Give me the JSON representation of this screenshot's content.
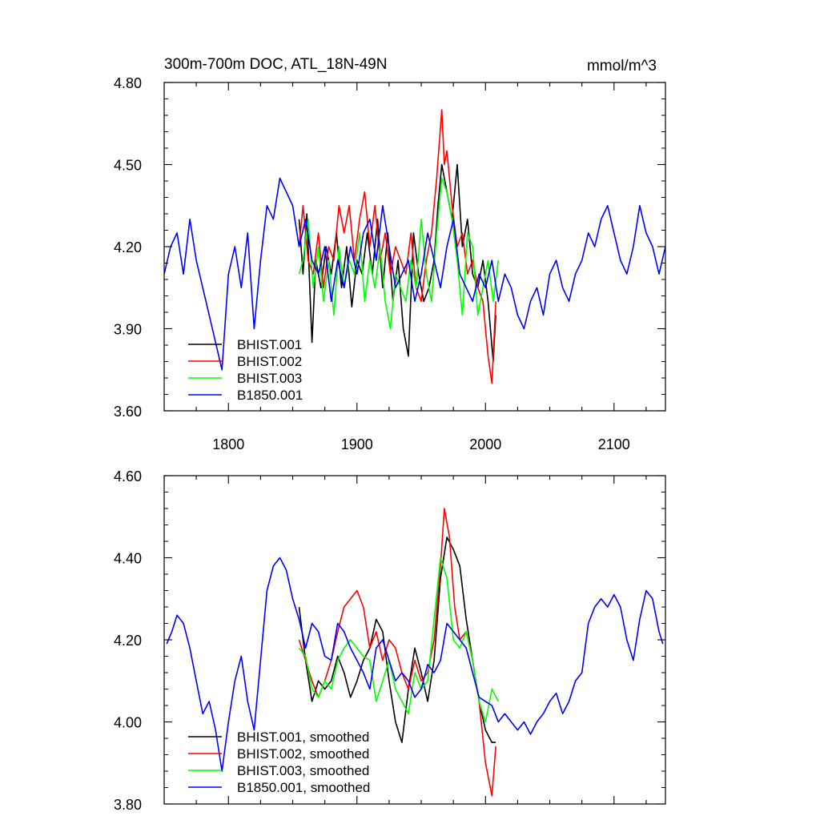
{
  "chart_data": [
    {
      "type": "line",
      "title": "300m-700m DOC, ATL_18N-49N",
      "units": "mmol/m^3",
      "xlim": [
        1750,
        2140
      ],
      "ylim": [
        3.6,
        4.8
      ],
      "xticks": [
        {
          "value": 1800,
          "label": "1800"
        },
        {
          "value": 1900,
          "label": "1900"
        },
        {
          "value": 2000,
          "label": "2000"
        },
        {
          "value": 2100,
          "label": "2100"
        }
      ],
      "yticks": [
        {
          "value": 3.6,
          "label": "3.60"
        },
        {
          "value": 3.9,
          "label": "3.90"
        },
        {
          "value": 4.2,
          "label": "4.20"
        },
        {
          "value": 4.5,
          "label": "4.50"
        },
        {
          "value": 4.8,
          "label": "4.80"
        }
      ],
      "legend_position": "bottom-left",
      "series": [
        {
          "name": "BHIST.001",
          "color": "#000000",
          "x": [
            1855,
            1858,
            1861,
            1862,
            1865,
            1868,
            1872,
            1876,
            1880,
            1884,
            1888,
            1892,
            1896,
            1900,
            1904,
            1908,
            1912,
            1916,
            1920,
            1924,
            1928,
            1932,
            1936,
            1940,
            1944,
            1948,
            1952,
            1956,
            1960,
            1963,
            1966,
            1970,
            1974,
            1978,
            1982,
            1986,
            1990,
            1994,
            1998,
            2002,
            2006,
            2008
          ],
          "y": [
            4.3,
            4.1,
            4.32,
            4.2,
            3.85,
            4.15,
            4.05,
            4.2,
            4.1,
            4.25,
            4.05,
            4.2,
            3.98,
            4.15,
            4.1,
            4.25,
            4.1,
            4.3,
            4.05,
            4.25,
            4.0,
            4.15,
            3.9,
            3.8,
            4.25,
            4.1,
            4.0,
            4.05,
            4.15,
            4.35,
            4.5,
            4.4,
            4.3,
            4.5,
            4.2,
            4.3,
            4.1,
            4.05,
            4.15,
            4.0,
            3.78,
            3.95
          ]
        },
        {
          "name": "BHIST.002",
          "color": "#ff0000",
          "x": [
            1855,
            1858,
            1862,
            1866,
            1870,
            1874,
            1878,
            1882,
            1886,
            1890,
            1894,
            1898,
            1902,
            1906,
            1910,
            1914,
            1918,
            1922,
            1926,
            1930,
            1934,
            1938,
            1942,
            1946,
            1950,
            1954,
            1958,
            1962,
            1966,
            1968,
            1970,
            1974,
            1978,
            1982,
            1986,
            1990,
            1994,
            1998,
            2002,
            2005,
            2008
          ],
          "y": [
            4.2,
            4.35,
            4.15,
            4.1,
            4.25,
            4.05,
            4.2,
            4.15,
            4.35,
            4.25,
            4.35,
            4.15,
            4.3,
            4.4,
            4.2,
            4.35,
            4.15,
            4.25,
            4.1,
            4.2,
            4.15,
            4.1,
            4.25,
            4.05,
            4.0,
            4.15,
            4.25,
            4.45,
            4.7,
            4.5,
            4.55,
            4.35,
            4.2,
            4.25,
            4.1,
            4.15,
            4.05,
            4.0,
            3.8,
            3.7,
            4.0
          ]
        },
        {
          "name": "BHIST.003",
          "color": "#00ff00",
          "x": [
            1855,
            1858,
            1862,
            1866,
            1870,
            1874,
            1878,
            1882,
            1886,
            1890,
            1894,
            1898,
            1902,
            1906,
            1910,
            1914,
            1918,
            1922,
            1926,
            1930,
            1934,
            1938,
            1942,
            1946,
            1950,
            1954,
            1958,
            1962,
            1966,
            1970,
            1974,
            1978,
            1982,
            1986,
            1990,
            1994,
            1998,
            2002,
            2006,
            2010
          ],
          "y": [
            4.1,
            4.15,
            4.3,
            4.05,
            4.2,
            4.0,
            4.15,
            3.95,
            4.2,
            4.05,
            4.15,
            4.1,
            4.25,
            4.0,
            4.15,
            4.05,
            4.2,
            4.0,
            3.9,
            4.1,
            4.05,
            4.0,
            4.15,
            4.05,
            4.3,
            4.1,
            4.0,
            4.25,
            4.45,
            4.4,
            4.3,
            4.15,
            3.95,
            4.25,
            4.2,
            3.95,
            4.05,
            4.15,
            4.0,
            4.15
          ]
        },
        {
          "name": "B1850.001",
          "color": "#0000ff",
          "x": [
            1750,
            1755,
            1760,
            1765,
            1770,
            1775,
            1780,
            1785,
            1790,
            1795,
            1800,
            1805,
            1810,
            1815,
            1820,
            1825,
            1830,
            1835,
            1840,
            1845,
            1850,
            1855,
            1860,
            1865,
            1870,
            1875,
            1880,
            1885,
            1890,
            1895,
            1900,
            1905,
            1910,
            1915,
            1920,
            1925,
            1930,
            1935,
            1940,
            1945,
            1950,
            1955,
            1960,
            1965,
            1970,
            1975,
            1980,
            1985,
            1990,
            1995,
            2000,
            2005,
            2010,
            2015,
            2020,
            2025,
            2030,
            2035,
            2040,
            2045,
            2050,
            2055,
            2060,
            2065,
            2070,
            2075,
            2080,
            2085,
            2090,
            2095,
            2100,
            2105,
            2110,
            2115,
            2120,
            2125,
            2130,
            2135,
            2140
          ],
          "y": [
            4.1,
            4.2,
            4.25,
            4.1,
            4.3,
            4.15,
            4.05,
            3.95,
            3.85,
            3.75,
            4.1,
            4.2,
            4.05,
            4.25,
            3.9,
            4.15,
            4.35,
            4.3,
            4.45,
            4.4,
            4.35,
            4.2,
            4.3,
            4.15,
            4.1,
            4.2,
            4.0,
            4.15,
            4.05,
            4.2,
            4.1,
            4.25,
            4.3,
            4.15,
            4.35,
            4.2,
            4.05,
            4.1,
            4.15,
            4.0,
            4.1,
            4.25,
            4.15,
            4.05,
            4.2,
            4.3,
            4.1,
            4.05,
            4.0,
            4.1,
            4.05,
            4.15,
            4.0,
            4.1,
            4.05,
            3.95,
            3.9,
            4.0,
            4.05,
            3.95,
            4.1,
            4.15,
            4.05,
            4.0,
            4.1,
            4.15,
            4.25,
            4.2,
            4.3,
            4.35,
            4.25,
            4.15,
            4.1,
            4.2,
            4.35,
            4.25,
            4.2,
            4.1,
            4.2
          ]
        }
      ]
    },
    {
      "type": "line",
      "xlim": [
        1750,
        2140
      ],
      "ylim": [
        3.8,
        4.6
      ],
      "yticks": [
        {
          "value": 3.8,
          "label": "3.80"
        },
        {
          "value": 4.0,
          "label": "4.00"
        },
        {
          "value": 4.2,
          "label": "4.20"
        },
        {
          "value": 4.4,
          "label": "4.40"
        },
        {
          "value": 4.6,
          "label": "4.60"
        }
      ],
      "legend_position": "bottom-left",
      "series": [
        {
          "name": "BHIST.001, smoothed",
          "color": "#000000",
          "x": [
            1855,
            1860,
            1865,
            1870,
            1875,
            1880,
            1885,
            1890,
            1895,
            1900,
            1905,
            1910,
            1915,
            1920,
            1925,
            1930,
            1935,
            1940,
            1945,
            1950,
            1955,
            1960,
            1965,
            1970,
            1975,
            1980,
            1985,
            1990,
            1995,
            2000,
            2005,
            2008
          ],
          "y": [
            4.28,
            4.15,
            4.05,
            4.1,
            4.08,
            4.1,
            4.16,
            4.12,
            4.06,
            4.1,
            4.15,
            4.18,
            4.25,
            4.22,
            4.1,
            4.0,
            3.95,
            4.08,
            4.18,
            4.12,
            4.05,
            4.15,
            4.35,
            4.45,
            4.42,
            4.38,
            4.25,
            4.15,
            4.05,
            3.98,
            3.95,
            3.95
          ]
        },
        {
          "name": "BHIST.002, smoothed",
          "color": "#ff0000",
          "x": [
            1855,
            1860,
            1865,
            1870,
            1875,
            1880,
            1885,
            1890,
            1895,
            1900,
            1905,
            1910,
            1915,
            1920,
            1925,
            1930,
            1935,
            1940,
            1945,
            1950,
            1955,
            1960,
            1965,
            1968,
            1972,
            1976,
            1980,
            1985,
            1990,
            1995,
            2000,
            2005,
            2008
          ],
          "y": [
            4.2,
            4.15,
            4.1,
            4.06,
            4.1,
            4.15,
            4.22,
            4.28,
            4.3,
            4.32,
            4.28,
            4.18,
            4.22,
            4.15,
            4.2,
            4.18,
            4.12,
            4.08,
            4.15,
            4.1,
            4.12,
            4.2,
            4.38,
            4.52,
            4.45,
            4.28,
            4.2,
            4.22,
            4.15,
            4.05,
            3.9,
            3.82,
            3.94
          ]
        },
        {
          "name": "BHIST.003, smoothed",
          "color": "#00ff00",
          "x": [
            1855,
            1860,
            1865,
            1870,
            1875,
            1880,
            1885,
            1890,
            1895,
            1900,
            1905,
            1910,
            1915,
            1920,
            1925,
            1930,
            1935,
            1940,
            1945,
            1950,
            1955,
            1960,
            1965,
            1970,
            1975,
            1980,
            1985,
            1990,
            1995,
            2000,
            2005,
            2010
          ],
          "y": [
            4.18,
            4.16,
            4.08,
            4.06,
            4.1,
            4.08,
            4.15,
            4.18,
            4.2,
            4.18,
            4.16,
            4.15,
            4.05,
            4.1,
            4.15,
            4.08,
            4.05,
            4.02,
            4.12,
            4.08,
            4.1,
            4.25,
            4.4,
            4.35,
            4.2,
            4.18,
            4.22,
            4.15,
            4.05,
            4.0,
            4.08,
            4.05
          ]
        },
        {
          "name": "B1850.001, smoothed",
          "color": "#0000ff",
          "x": [
            1752,
            1756,
            1760,
            1765,
            1770,
            1775,
            1780,
            1785,
            1790,
            1795,
            1800,
            1805,
            1810,
            1815,
            1820,
            1825,
            1830,
            1835,
            1840,
            1845,
            1850,
            1855,
            1860,
            1865,
            1870,
            1875,
            1880,
            1885,
            1890,
            1895,
            1900,
            1905,
            1910,
            1915,
            1920,
            1925,
            1930,
            1935,
            1940,
            1945,
            1950,
            1955,
            1960,
            1965,
            1970,
            1975,
            1980,
            1985,
            1990,
            1995,
            2000,
            2005,
            2010,
            2015,
            2020,
            2025,
            2030,
            2035,
            2040,
            2045,
            2050,
            2055,
            2060,
            2065,
            2070,
            2075,
            2080,
            2085,
            2090,
            2095,
            2100,
            2105,
            2110,
            2115,
            2120,
            2125,
            2130,
            2135,
            2138
          ],
          "y": [
            4.19,
            4.22,
            4.26,
            4.24,
            4.18,
            4.1,
            4.02,
            4.05,
            3.98,
            3.88,
            4.0,
            4.1,
            4.16,
            4.05,
            3.98,
            4.15,
            4.32,
            4.38,
            4.4,
            4.37,
            4.3,
            4.25,
            4.18,
            4.24,
            4.22,
            4.16,
            4.15,
            4.24,
            4.22,
            4.18,
            4.15,
            4.12,
            4.08,
            4.18,
            4.2,
            4.15,
            4.1,
            4.12,
            4.1,
            4.06,
            4.08,
            4.14,
            4.12,
            4.15,
            4.24,
            4.22,
            4.2,
            4.18,
            4.12,
            4.06,
            4.05,
            4.04,
            4.0,
            4.02,
            4.0,
            3.98,
            4.0,
            3.97,
            4.0,
            4.02,
            4.05,
            4.07,
            4.02,
            4.05,
            4.1,
            4.12,
            4.24,
            4.28,
            4.3,
            4.28,
            4.31,
            4.28,
            4.2,
            4.15,
            4.25,
            4.32,
            4.3,
            4.22,
            4.19
          ]
        }
      ]
    }
  ]
}
